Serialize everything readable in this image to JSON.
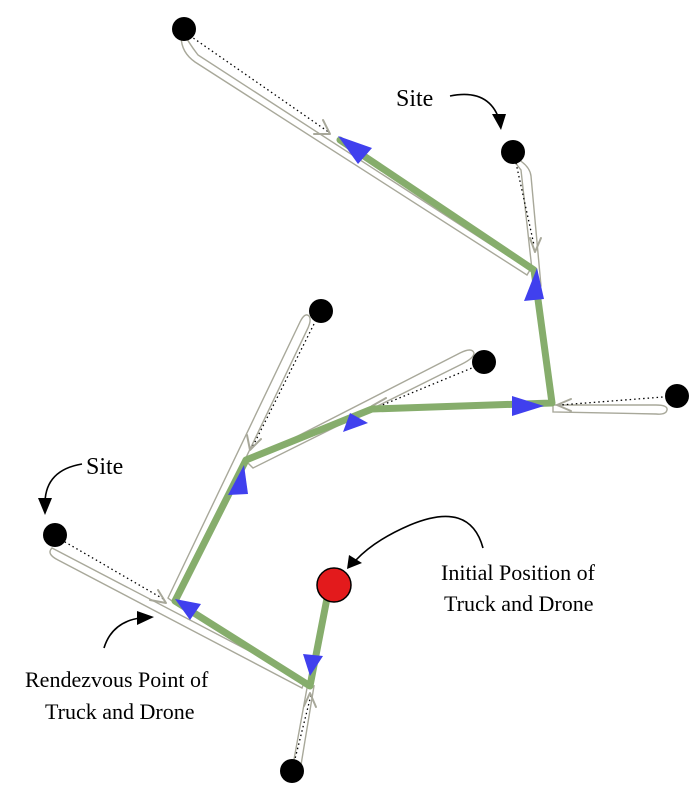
{
  "labels": {
    "site_top": "Site",
    "site_left": "Site",
    "initial_line1": "Initial Position of",
    "initial_line2": "Truck and Drone",
    "rendezvous_line1": "Rendezvous Point of",
    "rendezvous_line2": "Truck and Drone"
  },
  "colors": {
    "truck_route": "#86ad6c",
    "truck_arrow": "#4040ee",
    "drone_loop": "#a8a89a",
    "drone_arrow": "#a8a89a",
    "site": "#000000",
    "initial_position": "#e31a1c"
  },
  "icons": {
    "site": "black-dot",
    "initial_position": "red-circle",
    "truck_direction": "blue-triangle",
    "drone_direction": "gray-chevron"
  }
}
